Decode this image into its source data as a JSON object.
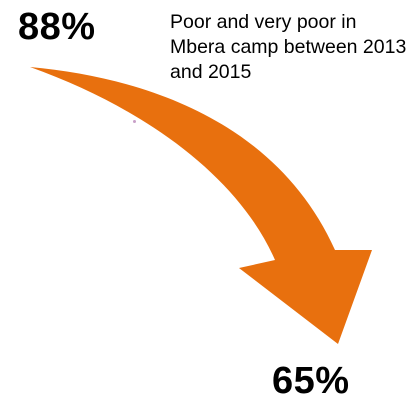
{
  "start_value": "88%",
  "end_value": "65%",
  "caption": "Poor and very poor in Mbera camp between 2013 and 2015",
  "colors": {
    "arrow": "#E8700E",
    "text": "#000000"
  }
}
